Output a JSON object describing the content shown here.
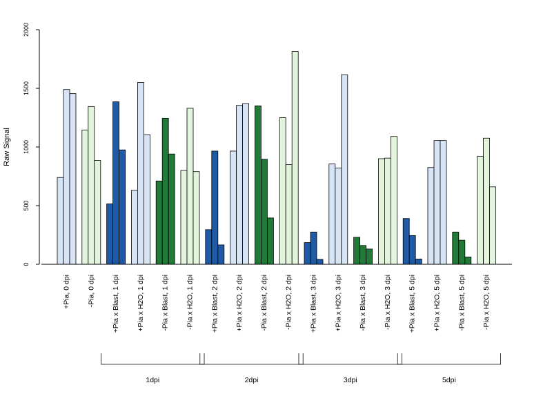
{
  "chart_data": {
    "type": "bar",
    "ylabel": "Raw Signal",
    "ylim": [
      0,
      2000
    ],
    "yticks": [
      0,
      500,
      1000,
      1500,
      2000
    ],
    "groups": [
      {
        "label": "+Pia, 0 dpi",
        "color": "#d6e4f5",
        "values": [
          740,
          1490,
          1455
        ]
      },
      {
        "label": "-Pia, 0 dpi",
        "color": "#e2f4dc",
        "values": [
          1145,
          1345,
          885
        ]
      },
      {
        "label": "+Pia x Blast, 1 dpi",
        "color": "#1f5aa6",
        "values": [
          515,
          1385,
          975
        ]
      },
      {
        "label": "+Pia x H2O, 1 dpi",
        "color": "#d6e4f5",
        "values": [
          630,
          1550,
          1105
        ]
      },
      {
        "label": "-Pia x Blast, 1 dpi",
        "color": "#217a37",
        "values": [
          710,
          1245,
          940
        ]
      },
      {
        "label": "-Pia x H2O, 1 dpi",
        "color": "#e2f4dc",
        "values": [
          800,
          1330,
          790
        ]
      },
      {
        "label": "+Pia x Blast, 2 dpi",
        "color": "#1f5aa6",
        "values": [
          295,
          965,
          165
        ]
      },
      {
        "label": "+Pia x H2O, 2 dpi",
        "color": "#d6e4f5",
        "values": [
          965,
          1355,
          1370
        ]
      },
      {
        "label": "-Pia x Blast, 2 dpi",
        "color": "#217a37",
        "values": [
          1350,
          895,
          395
        ]
      },
      {
        "label": "-Pia x H2O, 2 dpi",
        "color": "#e2f4dc",
        "values": [
          1250,
          850,
          1815
        ]
      },
      {
        "label": "+Pia x Blast, 3 dpi",
        "color": "#1f5aa6",
        "values": [
          185,
          275,
          42
        ]
      },
      {
        "label": "+Pia x H2O, 3 dpi",
        "color": "#d6e4f5",
        "values": [
          855,
          820,
          1615
        ]
      },
      {
        "label": "-Pia x Blast, 3 dpi",
        "color": "#217a37",
        "values": [
          230,
          160,
          130
        ]
      },
      {
        "label": "-Pia x H2O, 3 dpi",
        "color": "#e2f4dc",
        "values": [
          900,
          905,
          1090
        ]
      },
      {
        "label": "+Pia x Blast, 5 dpi",
        "color": "#1f5aa6",
        "values": [
          390,
          245,
          45
        ]
      },
      {
        "label": "+Pia x H2O, 5 dpi",
        "color": "#d6e4f5",
        "values": [
          825,
          1055,
          1055
        ]
      },
      {
        "label": "-Pia x Blast, 5 dpi",
        "color": "#217a37",
        "values": [
          275,
          205,
          62
        ]
      },
      {
        "label": "-Pia x H2O, 5 dpi",
        "color": "#e2f4dc",
        "values": [
          920,
          1075,
          660
        ]
      }
    ],
    "brackets": [
      {
        "label": "1dpi",
        "from_group": 2,
        "to_group": 5
      },
      {
        "label": "2dpi",
        "from_group": 6,
        "to_group": 9
      },
      {
        "label": "3dpi",
        "from_group": 10,
        "to_group": 13
      },
      {
        "label": "5dpi",
        "from_group": 14,
        "to_group": 17
      }
    ],
    "grid": false,
    "legend": "none"
  }
}
